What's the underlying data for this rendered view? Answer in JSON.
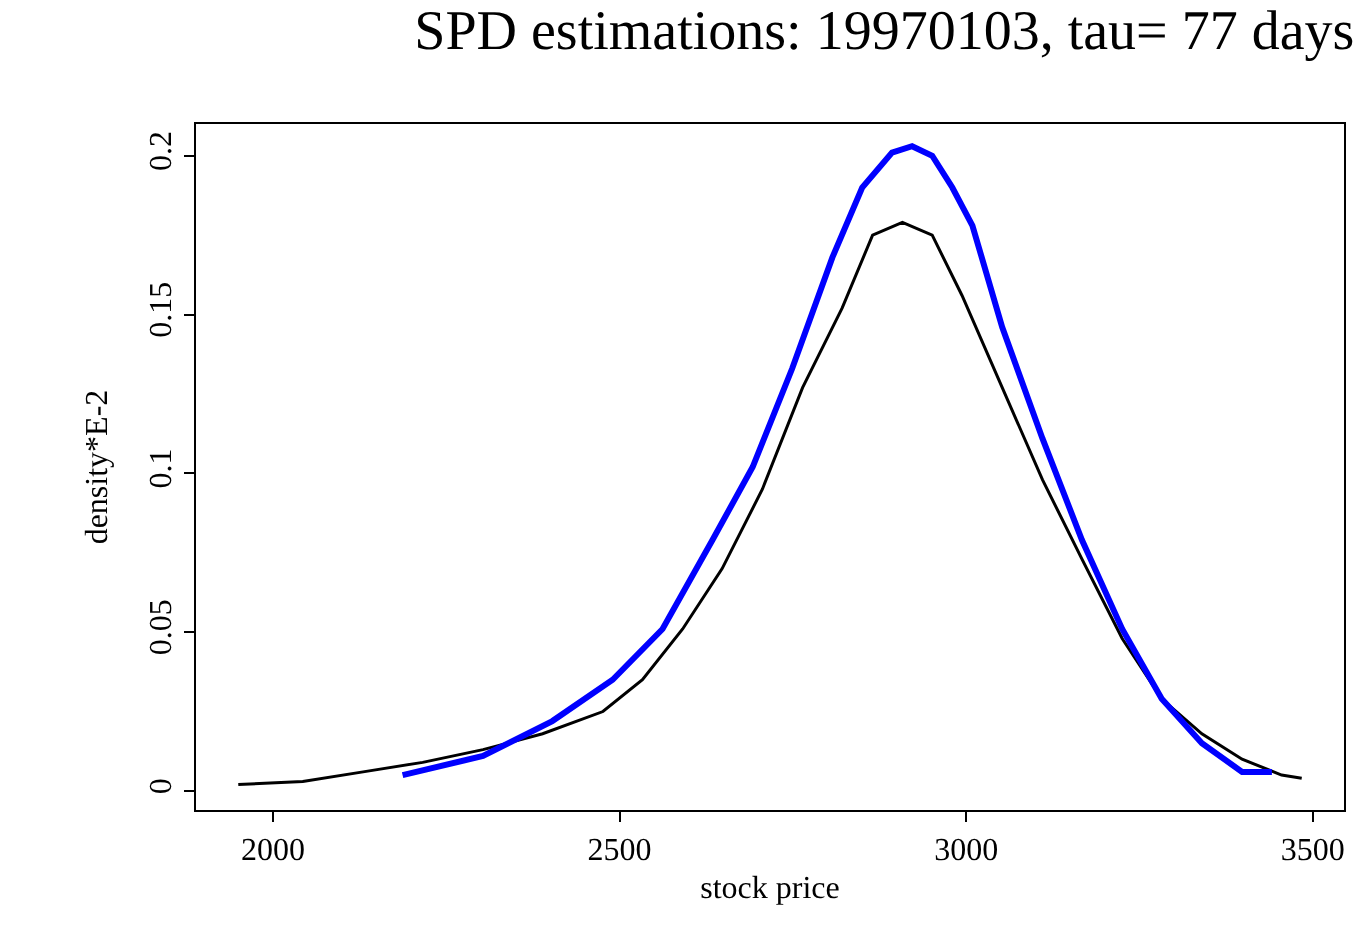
{
  "chart_data": {
    "type": "line",
    "title": "SPD estimations: 19970103, tau= 77 days",
    "xlabel": "stock price",
    "ylabel": "density*E-2",
    "xlim": [
      1889,
      3545
    ],
    "xticks": [
      2000,
      2500,
      3000,
      3500
    ],
    "ylim": [
      -0.006,
      0.21
    ],
    "yticks": [
      0,
      0.05,
      0.1,
      0.15,
      0.2
    ],
    "marker": "none",
    "line_style": "solid",
    "series": [
      {
        "color": "#000000",
        "x": [
          1950,
          2043,
          2130,
          2216,
          2303,
          2389,
          2476,
          2533,
          2591,
          2648,
          2706,
          2764,
          2821,
          2865,
          2908,
          2951,
          2994,
          3052,
          3110,
          3167,
          3225,
          3282,
          3340,
          3398,
          3455,
          3484
        ],
        "values": [
          0.002,
          0.003,
          0.006,
          0.009,
          0.013,
          0.018,
          0.025,
          0.035,
          0.051,
          0.07,
          0.095,
          0.127,
          0.152,
          0.175,
          0.179,
          0.175,
          0.156,
          0.127,
          0.098,
          0.073,
          0.048,
          0.029,
          0.018,
          0.01,
          0.005,
          0.004
        ]
      },
      {
        "color": "#0000ff",
        "x": [
          2187,
          2303,
          2403,
          2490,
          2562,
          2634,
          2692,
          2749,
          2807,
          2850,
          2893,
          2922,
          2951,
          2980,
          3009,
          3052,
          3110,
          3167,
          3225,
          3282,
          3340,
          3398,
          3441
        ],
        "values": [
          0.005,
          0.011,
          0.022,
          0.035,
          0.051,
          0.079,
          0.102,
          0.133,
          0.168,
          0.19,
          0.201,
          0.203,
          0.2,
          0.19,
          0.178,
          0.146,
          0.111,
          0.079,
          0.051,
          0.029,
          0.015,
          0.006,
          0.006
        ]
      }
    ]
  }
}
